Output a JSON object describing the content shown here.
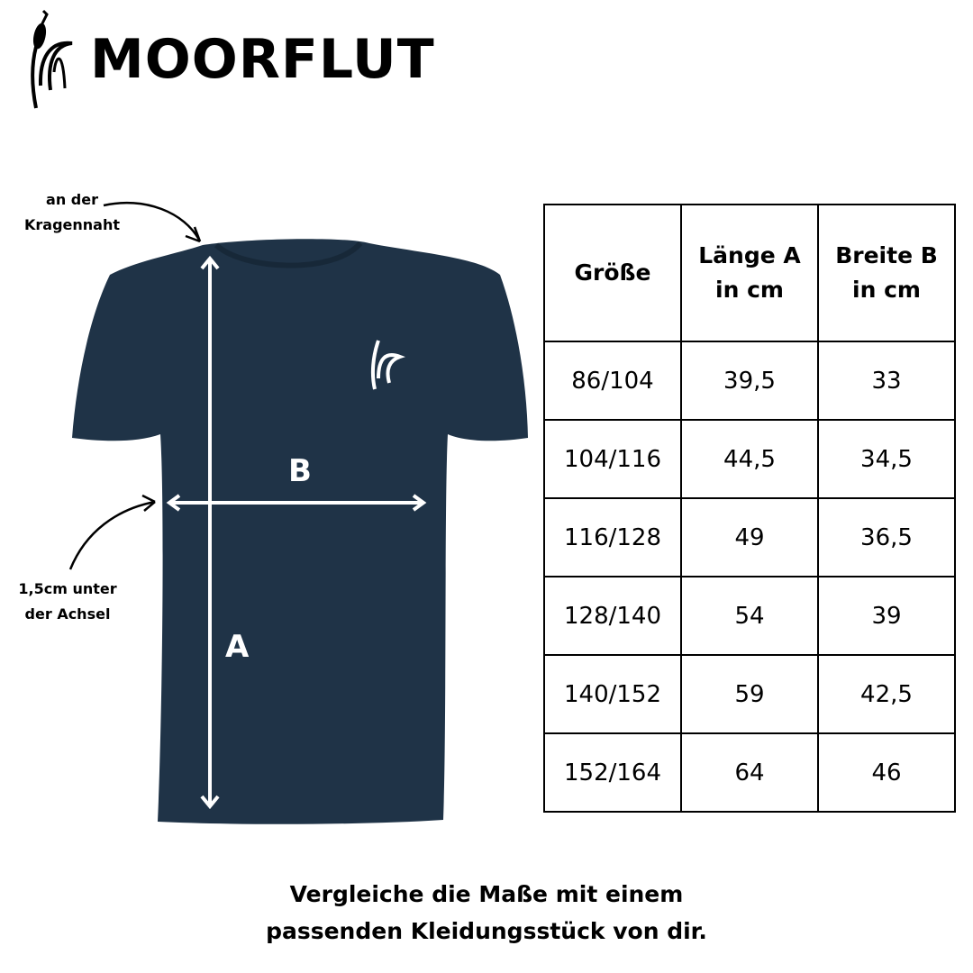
{
  "brand": {
    "name": "MOORFLUT",
    "logo_icon": "cattail-reed-icon"
  },
  "shirt": {
    "color": "#1f3347"
  },
  "annotations": {
    "collar_note_line1": "an der",
    "collar_note_line2": "Kragennaht",
    "armpit_note_line1": "1,5cm unter",
    "armpit_note_line2": "der Achsel",
    "label_a": "A",
    "label_b": "B"
  },
  "table": {
    "headers": [
      {
        "line1": "Größe",
        "line2": ""
      },
      {
        "line1": "Länge A",
        "line2": "in cm"
      },
      {
        "line1": "Breite B",
        "line2": "in cm"
      }
    ],
    "rows": [
      [
        "86/104",
        "39,5",
        "33"
      ],
      [
        "104/116",
        "44,5",
        "34,5"
      ],
      [
        "116/128",
        "49",
        "36,5"
      ],
      [
        "128/140",
        "54",
        "39"
      ],
      [
        "140/152",
        "59",
        "42,5"
      ],
      [
        "152/164",
        "64",
        "46"
      ]
    ]
  },
  "footer": {
    "line1": "Vergleiche die Maße mit einem",
    "line2": "passenden Kleidungsstück von dir."
  }
}
